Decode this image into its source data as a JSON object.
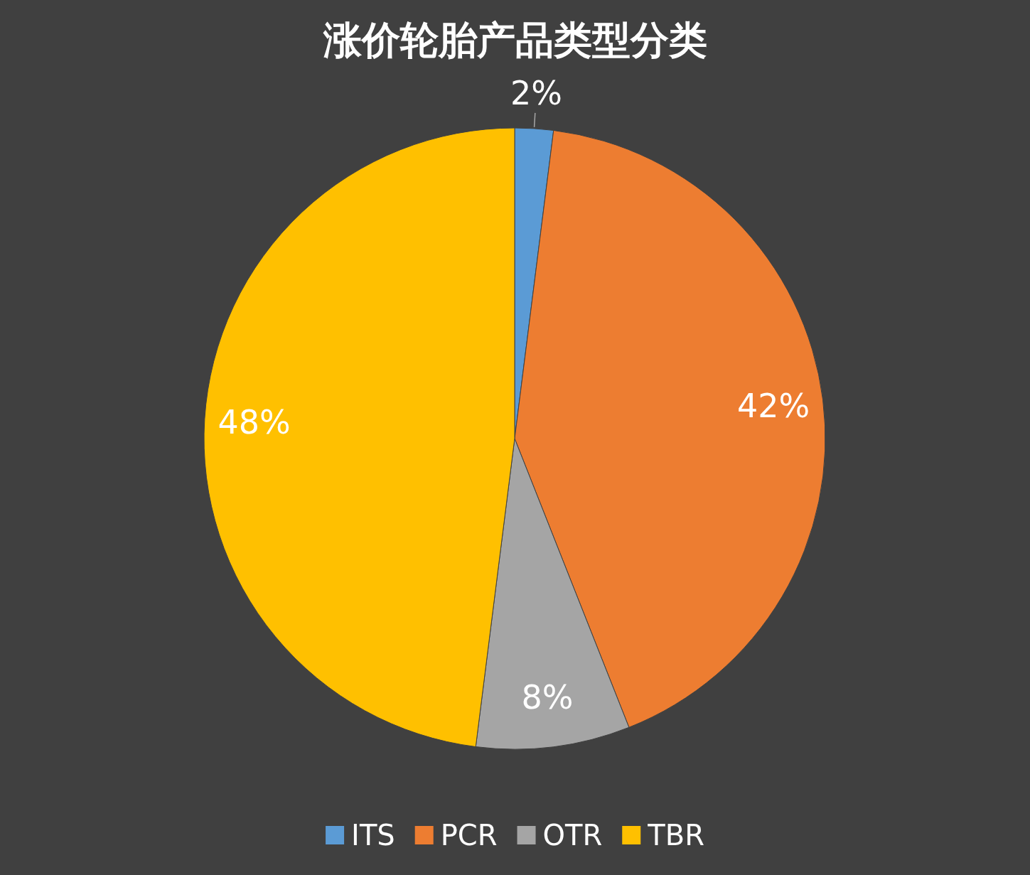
{
  "chart_data": {
    "type": "pie",
    "title": "涨价轮胎产品类型分类",
    "categories": [
      "ITS",
      "PCR",
      "OTR",
      "TBR"
    ],
    "values": [
      2,
      42,
      8,
      48
    ],
    "colors": [
      "#5b9bd5",
      "#ed7d31",
      "#a5a5a5",
      "#ffc000"
    ],
    "value_labels": [
      "2%",
      "42%",
      "8%",
      "48%"
    ],
    "legend": "bottom"
  }
}
